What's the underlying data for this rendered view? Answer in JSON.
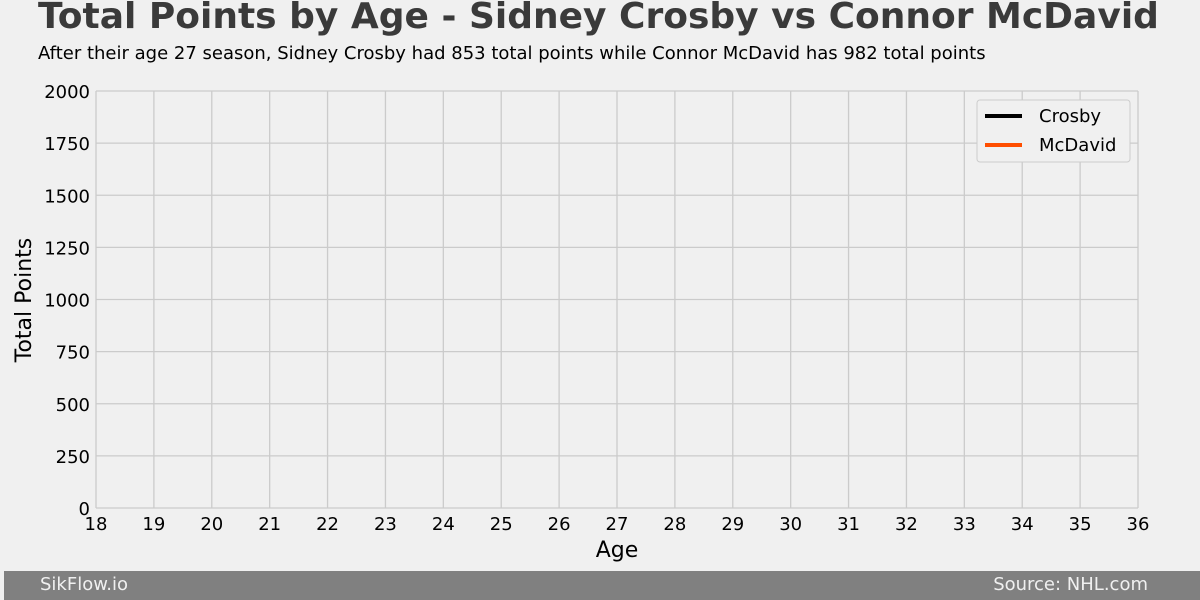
{
  "chart_data": {
    "type": "line",
    "title": "Total Points by Age - Sidney Crosby vs Connor McDavid",
    "subtitle": "After their age 27 season, Sidney Crosby had 853 total points while Connor McDavid has 982 total points",
    "xlabel": "Age",
    "ylabel": "Total Points",
    "xlim": [
      18,
      36
    ],
    "ylim": [
      0,
      2000
    ],
    "x_ticks": [
      18,
      19,
      20,
      21,
      22,
      23,
      24,
      25,
      26,
      27,
      28,
      29,
      30,
      31,
      32,
      33,
      34,
      35,
      36
    ],
    "y_ticks": [
      0,
      250,
      500,
      750,
      1000,
      1250,
      1500,
      1750,
      2000
    ],
    "grid": true,
    "legend_position": "top-right",
    "series": [
      {
        "name": "Crosby",
        "color": "#000000",
        "x": [],
        "y": []
      },
      {
        "name": "McDavid",
        "color": "#ff4e00",
        "x": [],
        "y": []
      }
    ]
  },
  "footer": {
    "left": "SikFlow.io",
    "right": "Source: NHL.com"
  },
  "colors": {
    "background": "#f0f0f0",
    "grid": "#cbcbcb",
    "title": "#3a3a3a",
    "footer_bg": "#808080"
  }
}
